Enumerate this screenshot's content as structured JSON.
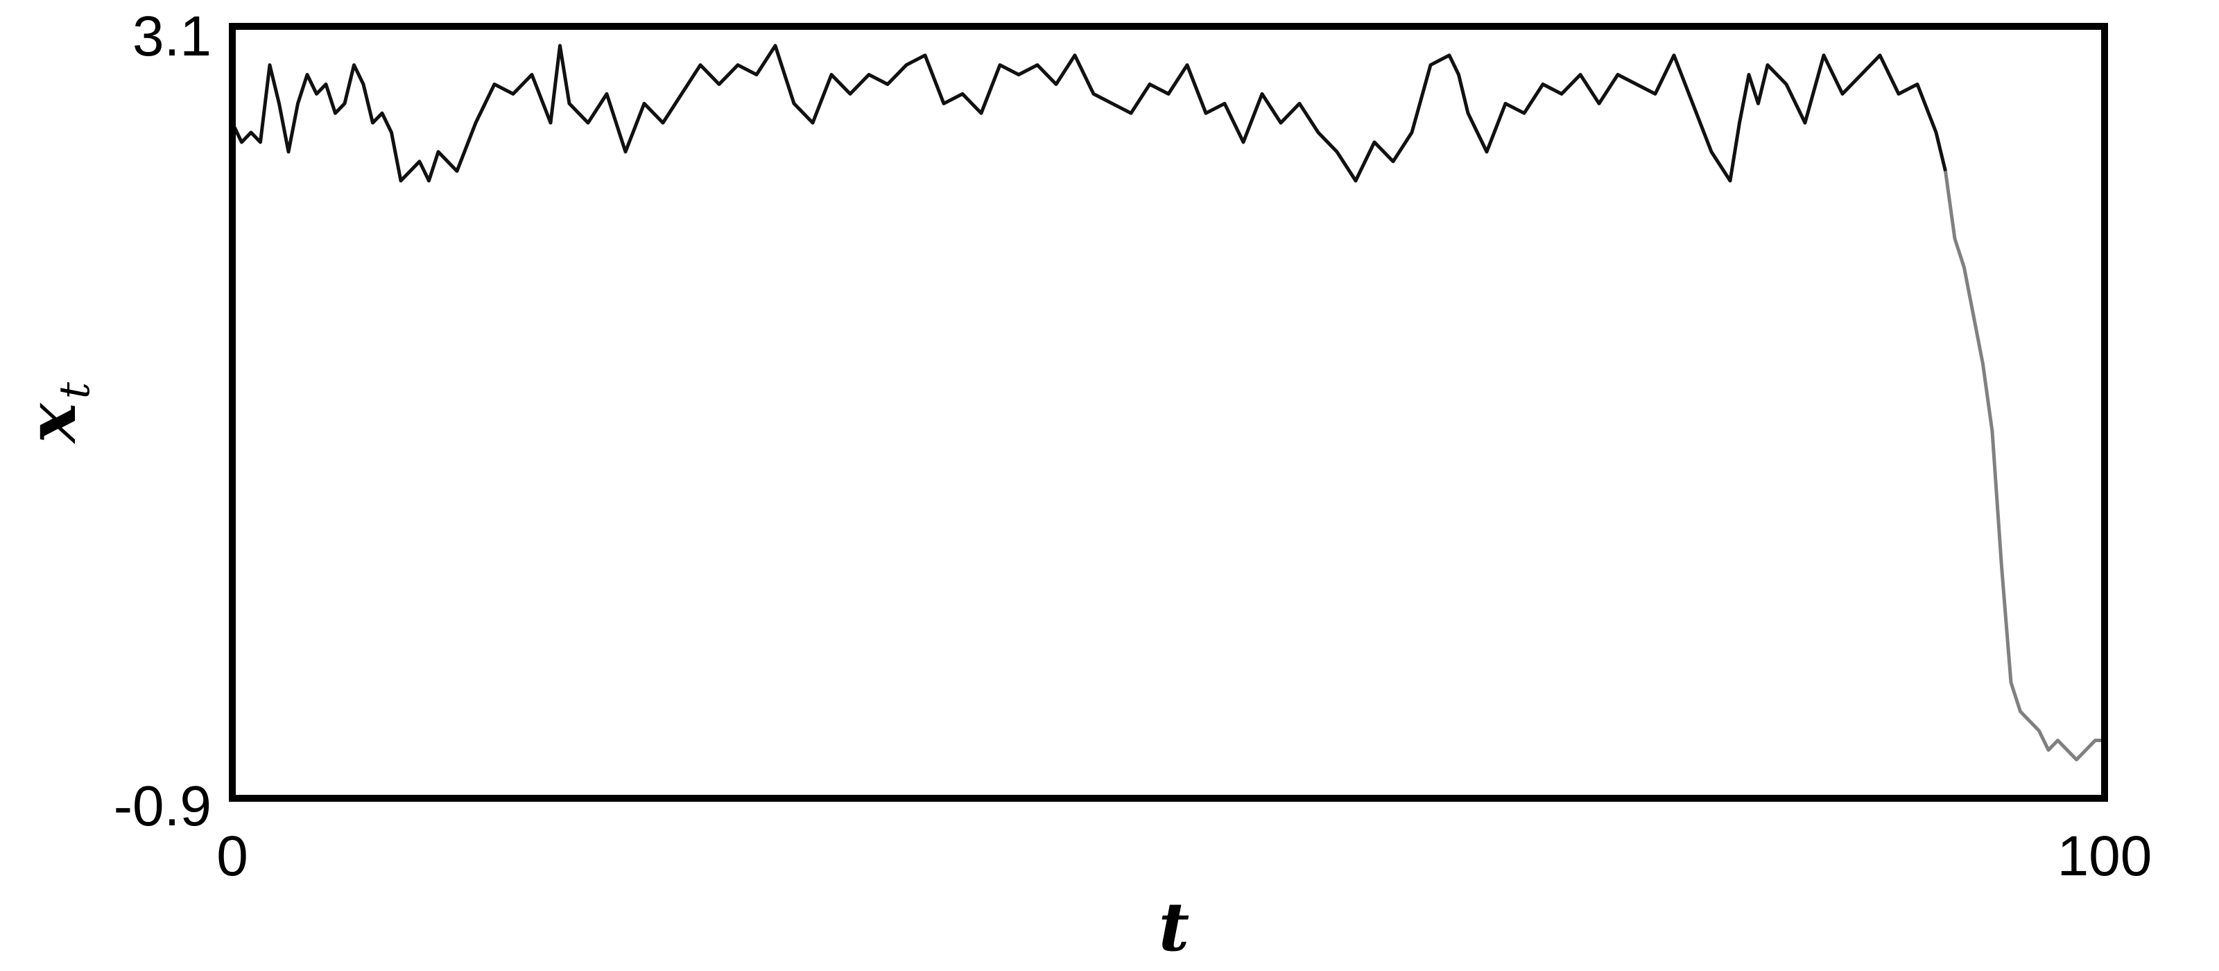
{
  "chart_data": {
    "type": "line",
    "title": "",
    "xlabel": "t",
    "ylabel": "x",
    "ylabel_subscript": "t",
    "xlim": [
      0,
      100
    ],
    "ylim": [
      -0.9,
      3.1
    ],
    "x_ticks": [
      "0",
      "100"
    ],
    "y_ticks": [
      "3.1",
      "-0.9"
    ],
    "grid": false,
    "legend": "none",
    "series": [
      {
        "color": "#111111",
        "x": [
          0,
          0.5,
          1,
          1.5,
          2,
          2.5,
          3,
          3.5,
          4,
          4.5,
          5,
          5.5,
          6,
          6.5,
          7,
          7.5,
          8,
          8.5,
          9,
          9.5,
          10,
          10.5,
          11,
          12,
          13,
          14,
          15,
          16,
          17,
          17.5,
          18,
          19,
          20,
          21,
          22,
          23,
          24,
          25,
          26,
          27,
          28,
          29,
          30,
          31,
          32,
          33,
          34,
          35,
          36,
          37,
          38,
          39,
          40,
          41,
          42,
          43,
          44,
          45,
          46,
          47,
          48,
          49,
          50,
          51,
          52,
          53,
          54,
          55,
          56,
          57,
          58,
          59,
          60,
          61,
          62,
          63,
          64,
          65,
          65.5,
          66,
          67,
          68,
          69,
          70,
          71,
          72,
          73,
          74,
          75,
          76,
          77,
          78,
          79,
          80,
          80.5,
          81,
          81.5,
          82,
          83,
          84,
          85,
          86,
          87,
          88,
          89,
          90,
          91,
          91.5
        ],
        "values": [
          2.6,
          2.5,
          2.55,
          2.5,
          2.9,
          2.7,
          2.45,
          2.7,
          2.85,
          2.75,
          2.8,
          2.65,
          2.7,
          2.9,
          2.8,
          2.6,
          2.65,
          2.55,
          2.3,
          2.35,
          2.4,
          2.3,
          2.45,
          2.35,
          2.6,
          2.8,
          2.75,
          2.85,
          2.6,
          3.0,
          2.7,
          2.6,
          2.75,
          2.45,
          2.7,
          2.6,
          2.75,
          2.9,
          2.8,
          2.9,
          2.85,
          3.0,
          2.7,
          2.6,
          2.85,
          2.75,
          2.85,
          2.8,
          2.9,
          2.95,
          2.7,
          2.75,
          2.65,
          2.9,
          2.85,
          2.9,
          2.8,
          2.95,
          2.75,
          2.7,
          2.65,
          2.8,
          2.75,
          2.9,
          2.65,
          2.7,
          2.5,
          2.75,
          2.6,
          2.7,
          2.55,
          2.45,
          2.3,
          2.5,
          2.4,
          2.55,
          2.9,
          2.95,
          2.85,
          2.65,
          2.45,
          2.7,
          2.65,
          2.8,
          2.75,
          2.85,
          2.7,
          2.85,
          2.8,
          2.75,
          2.95,
          2.7,
          2.45,
          2.3,
          2.6,
          2.85,
          2.7,
          2.9,
          2.8,
          2.6,
          2.95,
          2.75,
          2.85,
          2.95,
          2.75,
          2.8,
          2.55,
          2.35
        ]
      },
      {
        "color": "#808080",
        "x": [
          91.5,
          92,
          92.5,
          93,
          93.5,
          94,
          94.5,
          95,
          95.5,
          96,
          96.5,
          97,
          97.5,
          98,
          98.5,
          99,
          99.5,
          100
        ],
        "values": [
          2.35,
          2.0,
          1.85,
          1.6,
          1.35,
          1.0,
          0.3,
          -0.3,
          -0.45,
          -0.5,
          -0.55,
          -0.65,
          -0.6,
          -0.65,
          -0.7,
          -0.65,
          -0.6,
          -0.6
        ]
      }
    ]
  }
}
